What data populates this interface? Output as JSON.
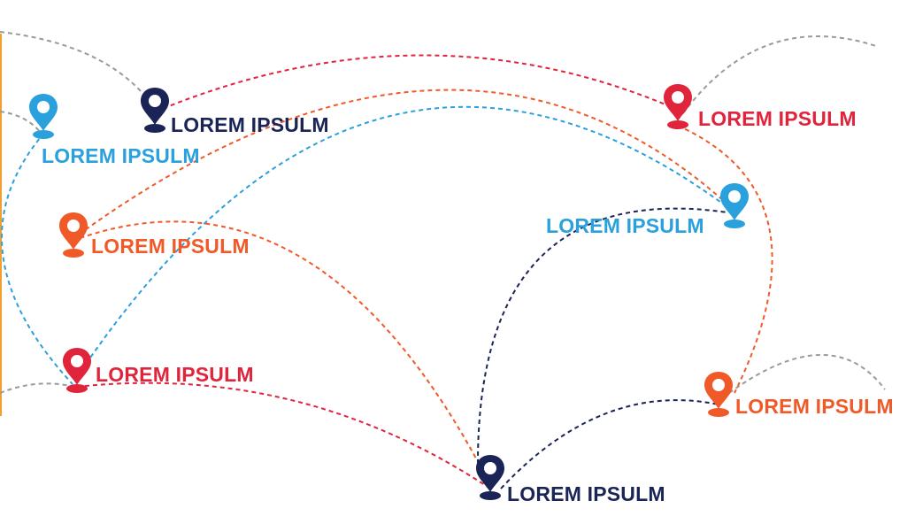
{
  "colors": {
    "navy": "#1a2456",
    "red": "#e0243c",
    "orange": "#f05a28",
    "blue": "#2aa0dc",
    "gray": "#9a9a9a"
  },
  "pins": [
    {
      "id": "navy-top",
      "color": "navy",
      "icon": "map-pin-icon",
      "label": "LOREM IPSULM"
    },
    {
      "id": "blue-top-left",
      "color": "blue",
      "icon": "map-pin-icon",
      "label": "LOREM IPSULM"
    },
    {
      "id": "red-top-right",
      "color": "red",
      "icon": "map-pin-icon",
      "label": "LOREM IPSULM"
    },
    {
      "id": "blue-right",
      "color": "blue",
      "icon": "map-pin-icon",
      "label": "LOREM IPSULM"
    },
    {
      "id": "orange-left",
      "color": "orange",
      "icon": "map-pin-icon",
      "label": "LOREM IPSULM"
    },
    {
      "id": "red-left",
      "color": "red",
      "icon": "map-pin-icon",
      "label": "LOREM IPSULM"
    },
    {
      "id": "orange-right",
      "color": "orange",
      "icon": "map-pin-icon",
      "label": "LOREM IPSULM"
    },
    {
      "id": "navy-bottom",
      "color": "navy",
      "icon": "map-pin-icon",
      "label": "LOREM IPSULM"
    }
  ],
  "routes": [
    {
      "id": "red-top-arc",
      "color": "red",
      "from": "navy-top",
      "to": "red-top-right"
    },
    {
      "id": "orange-top-arc",
      "color": "orange",
      "from": "orange-left",
      "to": "blue-right"
    },
    {
      "id": "blue-mid-arc",
      "color": "blue",
      "from": "red-left",
      "to": "blue-right"
    },
    {
      "id": "orange-bottom-arc",
      "color": "orange",
      "from": "orange-left",
      "to": "navy-bottom"
    },
    {
      "id": "red-bottom-arc",
      "color": "red",
      "from": "red-left",
      "to": "navy-bottom"
    },
    {
      "id": "navy-arc-1",
      "color": "navy",
      "from": "navy-bottom",
      "to": "blue-right"
    },
    {
      "id": "navy-arc-2",
      "color": "navy",
      "from": "navy-bottom",
      "to": "orange-right"
    },
    {
      "id": "orange-right-arc",
      "color": "orange",
      "from": "red-top-right",
      "to": "orange-right"
    },
    {
      "id": "blue-left-arc",
      "color": "blue",
      "from": "blue-top-left",
      "to": "red-left"
    },
    {
      "id": "gray-top-left",
      "color": "gray"
    },
    {
      "id": "gray-top-right",
      "color": "gray"
    },
    {
      "id": "gray-bottom-left",
      "color": "gray"
    },
    {
      "id": "gray-bottom-right",
      "color": "gray"
    }
  ]
}
